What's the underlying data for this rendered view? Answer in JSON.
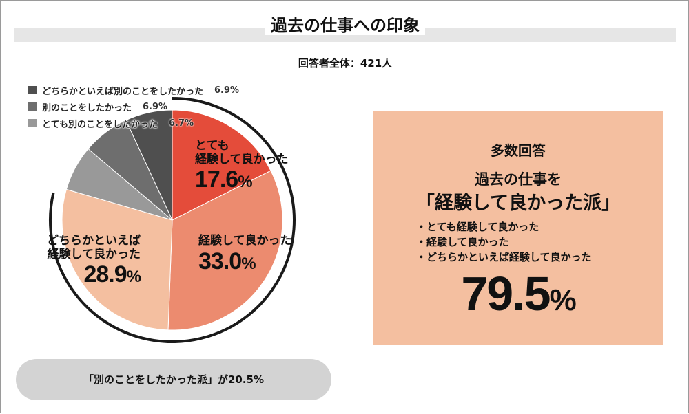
{
  "title": "過去の仕事への印象",
  "respondents": "回答者全体：421人",
  "chart_data": {
    "type": "pie",
    "title": "過去の仕事への印象",
    "start": "top",
    "direction": "clockwise",
    "slices": [
      {
        "label": "とても経験して良かった",
        "value": 17.6,
        "color": "#e44c3a",
        "label_lines": [
          "とても",
          "経験して良かった"
        ],
        "pct_text": "17.6"
      },
      {
        "label": "経験して良かった",
        "value": 33.0,
        "color": "#ec8b6f",
        "label_lines": [
          "経験して良かった"
        ],
        "pct_text": "33.0"
      },
      {
        "label": "どちらかといえば経験して良かった",
        "value": 28.9,
        "color": "#f4bfa0",
        "label_lines": [
          "どちらかといえば",
          "経験して良かった"
        ],
        "pct_text": "28.9"
      },
      {
        "label": "とても別のことをしたかった",
        "value": 6.7,
        "color": "#999999"
      },
      {
        "label": "別のことをしたかった",
        "value": 6.9,
        "color": "#6e6e6e"
      },
      {
        "label": "どちらかといえば別のことをしたかった",
        "value": 6.9,
        "color": "#4f4f4f"
      }
    ],
    "legend": [
      {
        "label": "どちらかといえば別のことをしたかった",
        "value": "6.9%",
        "color": "#4f4f4f"
      },
      {
        "label": "別のことをしたかった",
        "value": "6.9%",
        "color": "#6e6e6e"
      },
      {
        "label": "とても別のことをしたかった",
        "value": "6.7%",
        "color": "#999999"
      }
    ],
    "legend_position": "top-left",
    "percent_symbol": "%"
  },
  "summary": {
    "heading": "多数回答",
    "line1": "過去の仕事を",
    "line2": "「経験して良かった派」",
    "items": [
      "・とても経験して良かった",
      "・経験して良かった",
      "・どちらかといえば経験して良かった"
    ],
    "total_value": "79.5",
    "total_symbol": "%",
    "box_color": "#f4bfa0"
  },
  "footer": "「別のことをしたかった派」が20.5%"
}
